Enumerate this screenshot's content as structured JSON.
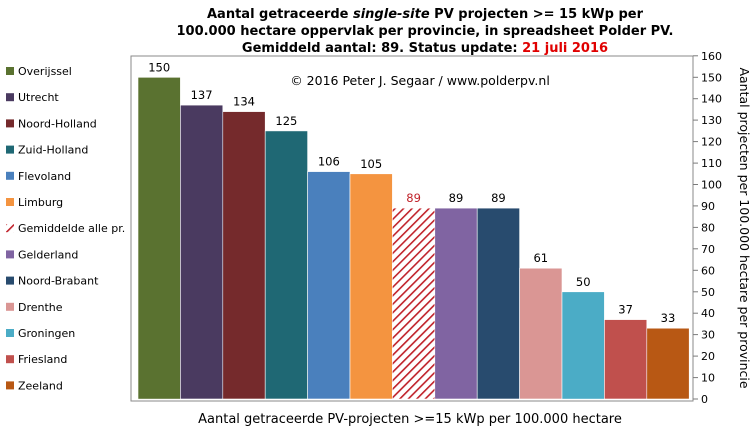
{
  "chart_data": {
    "type": "bar",
    "title_lines": [
      [
        "Aantal getraceerde ",
        "single-site",
        " PV projecten >= 15 kWp per"
      ],
      [
        "100.000 hectare oppervlak per provincie, in spreadsheet Polder PV."
      ],
      [
        "Gemiddeld aantal: 89. Status update: ",
        "21 juli 2016"
      ]
    ],
    "copyright": "© 2016 Peter J. Segaar / www.polderpv.nl",
    "xlabel": "Aantal getraceerde PV-projecten >=15 kWp per 100.000 hectare",
    "ylabel": "Aantal projecten per 100.000 hectare per provincie",
    "ylim": [
      0,
      160
    ],
    "yticks": [
      0,
      10,
      20,
      30,
      40,
      50,
      60,
      70,
      80,
      90,
      100,
      110,
      120,
      130,
      140,
      150,
      160
    ],
    "categories": [
      "Overijssel",
      "Utrecht",
      "Noord-Holland",
      "Zuid-Holland",
      "Flevoland",
      "Limburg",
      "Gemiddelde alle pr.",
      "Gelderland",
      "Noord-Brabant",
      "Drenthe",
      "Groningen",
      "Friesland",
      "Zeeland"
    ],
    "values": [
      150,
      137,
      134,
      125,
      106,
      105,
      89,
      89,
      89,
      61,
      50,
      37,
      33
    ],
    "colors": [
      "#5a7230",
      "#4a3a60",
      "#752a2c",
      "#1f6874",
      "#4a80bd",
      "#f49440",
      "#c0222a",
      "#8064a2",
      "#284b6e",
      "#da9694",
      "#4bacc6",
      "#c0504d",
      "#b85814"
    ],
    "hatched": [
      false,
      false,
      false,
      false,
      false,
      false,
      true,
      false,
      false,
      false,
      false,
      false,
      false
    ],
    "legend_position": "left",
    "grid": false,
    "highlight_color": "#e00000",
    "average_label_color": "#c0222a"
  }
}
